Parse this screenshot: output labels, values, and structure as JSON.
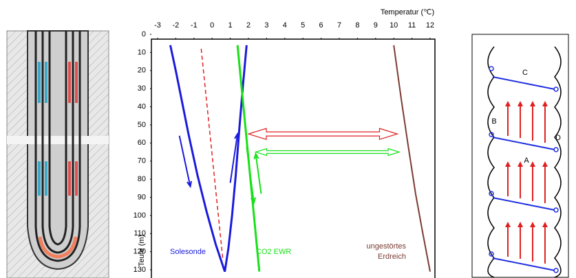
{
  "chart_data": {
    "type": "line",
    "x_label": "Temperatur (℃)",
    "y_label": "Teufe (m)",
    "xlim": [
      -3,
      12
    ],
    "xticks": [
      -3,
      -2,
      -1,
      0,
      1,
      2,
      3,
      4,
      5,
      6,
      7,
      8,
      9,
      10,
      11,
      12
    ],
    "ylim": [
      0,
      130
    ],
    "yticks": [
      0,
      10,
      20,
      30,
      40,
      50,
      60,
      70,
      80,
      90,
      100,
      110,
      120,
      130
    ],
    "y_inverted": true,
    "series": [
      {
        "name": "Solesonde",
        "color": "#1a1adc",
        "width": 3,
        "x": [
          -2.3,
          -2.0,
          -1.7,
          -1.3,
          -0.8,
          -0.3,
          0.2,
          0.7,
          0.9,
          1.1,
          1.3,
          1.5,
          1.7,
          1.9
        ],
        "values": [
          6,
          20,
          35,
          55,
          78,
          98,
          116,
          131,
          118,
          100,
          78,
          52,
          28,
          6
        ]
      },
      {
        "color": "#e02020",
        "width": 1.5,
        "dashed": true,
        "x": [
          -0.6,
          0.6
        ],
        "values": [
          8,
          125
        ]
      },
      {
        "name": "CO2 EWR",
        "color": "#18e018",
        "width": 3,
        "x": [
          1.4,
          2.6
        ],
        "values": [
          6,
          131
        ]
      },
      {
        "name": "ungestörtes Erdreich",
        "color": "#7a3a30",
        "width": 2,
        "x": [
          10.0,
          10.4,
          10.8,
          11.2,
          11.6,
          12.0
        ],
        "values": [
          6,
          35,
          62,
          88,
          110,
          131
        ]
      }
    ],
    "arrows": [
      {
        "color": "#e02020",
        "double": true,
        "x": [
          2.0,
          10.2
        ],
        "y": [
          55,
          55
        ]
      },
      {
        "color": "#18e018",
        "double": true,
        "x": [
          2.4,
          10.3
        ],
        "y": [
          65,
          65
        ]
      },
      {
        "color": "#1a1adc",
        "x": [
          -1.8,
          -1.2
        ],
        "y": [
          56,
          84
        ]
      },
      {
        "color": "#1a1adc",
        "x": [
          1.0,
          1.4
        ],
        "y": [
          82,
          55
        ]
      },
      {
        "color": "#18e018",
        "x": [
          1.9,
          2.3
        ],
        "y": [
          62,
          93
        ]
      },
      {
        "color": "#18e018",
        "x": [
          2.7,
          2.4
        ],
        "y": [
          88,
          66
        ]
      }
    ]
  },
  "right_diagram": {
    "labels": [
      "C",
      "B",
      "D",
      "A"
    ]
  }
}
